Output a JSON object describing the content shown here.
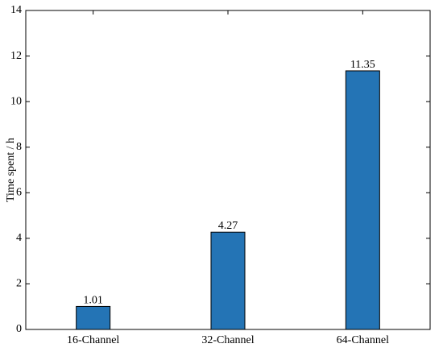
{
  "chart_data": {
    "type": "bar",
    "title": "",
    "xlabel": "",
    "ylabel": "Time spent / h",
    "categories": [
      "16-Channel",
      "32-Channel",
      "64-Channel"
    ],
    "values": [
      1.01,
      4.27,
      11.35
    ],
    "data_labels": [
      "1.01",
      "4.27",
      "11.35"
    ],
    "ylim": [
      0,
      14
    ],
    "yticks": [
      0,
      2,
      4,
      6,
      8,
      10,
      12,
      14
    ],
    "ytick_labels": [
      "0",
      "2",
      "4",
      "6",
      "8",
      "10",
      "12",
      "14"
    ],
    "grid": false,
    "legend": "none",
    "bar_color": "#2474b5",
    "bar_edge_color": "#000000"
  }
}
